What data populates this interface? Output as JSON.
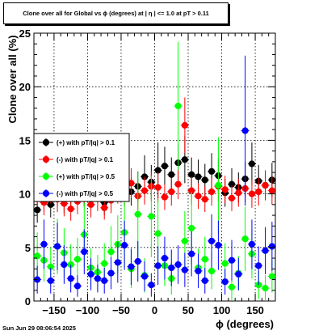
{
  "title": "Clone  over all for Global vs ϕ (degrees) at |  η  | <= 1.0 at pT > 0.11",
  "date_stamp": "Sun Jun 29 08:06:54 2025",
  "colors": {
    "black": "#000000",
    "red": "#ff0000",
    "green": "#00ff00",
    "blue": "#0000ff",
    "grid": "#000000"
  },
  "chart_data": {
    "type": "scatter",
    "title": "Clone  over all for Global vs ϕ (degrees) at |  η  | <= 1.0 at pT > 0.11",
    "xlabel": "ϕ (degrees)",
    "ylabel": "Clone  over all (%)",
    "xlim": [
      -180,
      180
    ],
    "ylim": [
      0,
      25
    ],
    "x_ticks": [
      -150,
      -100,
      -50,
      0,
      50,
      100,
      150
    ],
    "x_tick_labels": [
      "−150",
      "−100",
      "−50",
      "0",
      "50",
      "100",
      "150"
    ],
    "y_ticks": [
      0,
      5,
      10,
      15,
      20,
      25
    ],
    "y_tick_labels": [
      "0",
      "5",
      "10",
      "15",
      "20",
      "25"
    ],
    "grid": true,
    "legend_position": "left",
    "series": [
      {
        "name": "(+) with pT/|q| > 0.1",
        "color": "#000000",
        "marker": "circle",
        "x": [
          -175,
          -165,
          -155,
          -145,
          -135,
          -125,
          -115,
          -105,
          -95,
          -85,
          -75,
          -65,
          -55,
          -45,
          -35,
          -25,
          -15,
          -5,
          5,
          15,
          25,
          35,
          45,
          55,
          65,
          75,
          85,
          95,
          105,
          115,
          125,
          135,
          145,
          155,
          165,
          175
        ],
        "y": [
          8.5,
          9.6,
          9.0,
          10.2,
          9.4,
          9.9,
          10.7,
          10.3,
          9.8,
          10.6,
          9.2,
          10.1,
          11.4,
          10.8,
          10.2,
          10.7,
          11.6,
          11.1,
          12.2,
          12.6,
          11.8,
          12.9,
          13.2,
          11.8,
          11.6,
          11.3,
          12.1,
          11.7,
          10.1,
          10.9,
          10.6,
          11.4,
          12.8,
          11.2,
          10.8,
          11.3
        ],
        "yerr": [
          1.2,
          1.3,
          1.2,
          1.4,
          1.2,
          1.3,
          1.5,
          1.4,
          1.2,
          1.4,
          1.2,
          1.3,
          1.6,
          1.5,
          1.3,
          1.4,
          2.0,
          1.6,
          2.6,
          1.8,
          1.6,
          1.8,
          2.2,
          1.6,
          1.6,
          1.5,
          1.7,
          1.6,
          1.3,
          1.5,
          1.4,
          1.6,
          2.0,
          1.5,
          1.4,
          1.6
        ]
      },
      {
        "name": "(-) with pT/|q| > 0.1",
        "color": "#ff0000",
        "marker": "circle",
        "x": [
          -175,
          -165,
          -155,
          -145,
          -135,
          -125,
          -115,
          -105,
          -95,
          -85,
          -75,
          -65,
          -55,
          -45,
          -35,
          -25,
          -15,
          -5,
          5,
          15,
          25,
          35,
          45,
          55,
          65,
          75,
          85,
          95,
          105,
          115,
          125,
          135,
          145,
          155,
          165,
          175
        ],
        "y": [
          10.2,
          9.2,
          10.4,
          9.5,
          9.1,
          8.6,
          9.3,
          10.1,
          9.0,
          9.6,
          8.7,
          9.4,
          10.5,
          10.1,
          11.0,
          9.8,
          10.3,
          10.7,
          10.6,
          9.7,
          10.2,
          10.9,
          16.4,
          10.3,
          9.8,
          9.5,
          10.2,
          10.7,
          10.4,
          9.6,
          10.1,
          10.5,
          10.0,
          10.2,
          10.8,
          10.3
        ],
        "yerr": [
          1.3,
          1.2,
          1.3,
          1.2,
          1.2,
          1.1,
          1.2,
          1.3,
          1.2,
          1.2,
          1.1,
          1.2,
          1.4,
          1.3,
          1.4,
          1.3,
          1.3,
          1.4,
          1.4,
          1.2,
          1.3,
          1.4,
          2.6,
          1.3,
          1.2,
          1.2,
          1.3,
          1.4,
          1.3,
          1.2,
          1.3,
          1.3,
          1.3,
          1.3,
          1.4,
          1.3
        ]
      },
      {
        "name": "(+) with pT/|q| > 0.5",
        "color": "#00ff00",
        "marker": "circle",
        "x": [
          -175,
          -165,
          -155,
          -145,
          -135,
          -125,
          -115,
          -105,
          -95,
          -85,
          -75,
          -65,
          -55,
          -45,
          -35,
          -25,
          -15,
          -5,
          5,
          15,
          25,
          35,
          45,
          55,
          65,
          75,
          85,
          95,
          105,
          115,
          125,
          135,
          145,
          155,
          165,
          175
        ],
        "y": [
          4.2,
          3.8,
          3.2,
          5.1,
          4.5,
          3.4,
          3.9,
          6.2,
          3.1,
          2.7,
          3.5,
          4.6,
          5.3,
          6.4,
          3.0,
          8.1,
          2.4,
          7.9,
          6.3,
          3.3,
          2.1,
          18.2,
          5.6,
          6.8,
          3.1,
          3.9,
          2.8,
          10.8,
          3.5,
          1.3,
          2.6,
          5.8,
          4.4,
          1.5,
          1.2,
          2.3
        ],
        "yerr": [
          2.2,
          2.0,
          1.8,
          2.6,
          2.3,
          1.9,
          2.0,
          3.0,
          1.8,
          1.6,
          1.9,
          2.4,
          2.7,
          3.2,
          1.8,
          4.0,
          1.6,
          3.8,
          3.2,
          1.9,
          1.5,
          6.0,
          2.8,
          3.4,
          1.8,
          2.1,
          1.7,
          4.5,
          1.9,
          1.2,
          1.6,
          3.0,
          2.3,
          1.3,
          1.2,
          1.5
        ]
      },
      {
        "name": "(-) with pT/|q| > 0.5",
        "color": "#0000ff",
        "marker": "circle",
        "x": [
          -175,
          -165,
          -155,
          -145,
          -135,
          -125,
          -115,
          -105,
          -95,
          -85,
          -75,
          -65,
          -55,
          -45,
          -35,
          -25,
          -15,
          -5,
          5,
          15,
          25,
          35,
          45,
          55,
          65,
          75,
          85,
          95,
          105,
          115,
          125,
          135,
          145,
          155,
          165,
          175
        ],
        "y": [
          2.0,
          5.3,
          1.9,
          5.1,
          3.4,
          2.1,
          1.4,
          4.6,
          2.5,
          2.1,
          1.9,
          2.6,
          3.6,
          5.2,
          3.2,
          3.7,
          2.3,
          1.5,
          3.3,
          4.0,
          3.1,
          3.4,
          2.9,
          4.4,
          2.8,
          1.9,
          5.6,
          5.2,
          1.8,
          3.8,
          2.5,
          15.9,
          5.3,
          3.3,
          4.7,
          5.1
        ],
        "yerr": [
          1.3,
          2.3,
          1.2,
          2.2,
          1.8,
          1.3,
          1.0,
          2.1,
          1.5,
          1.3,
          1.2,
          1.5,
          1.9,
          2.3,
          1.7,
          1.9,
          1.4,
          1.1,
          1.8,
          2.0,
          1.7,
          1.8,
          1.6,
          2.1,
          1.6,
          1.2,
          2.5,
          2.3,
          1.2,
          1.9,
          1.5,
          7.0,
          2.3,
          1.8,
          2.2,
          2.3
        ]
      }
    ]
  }
}
